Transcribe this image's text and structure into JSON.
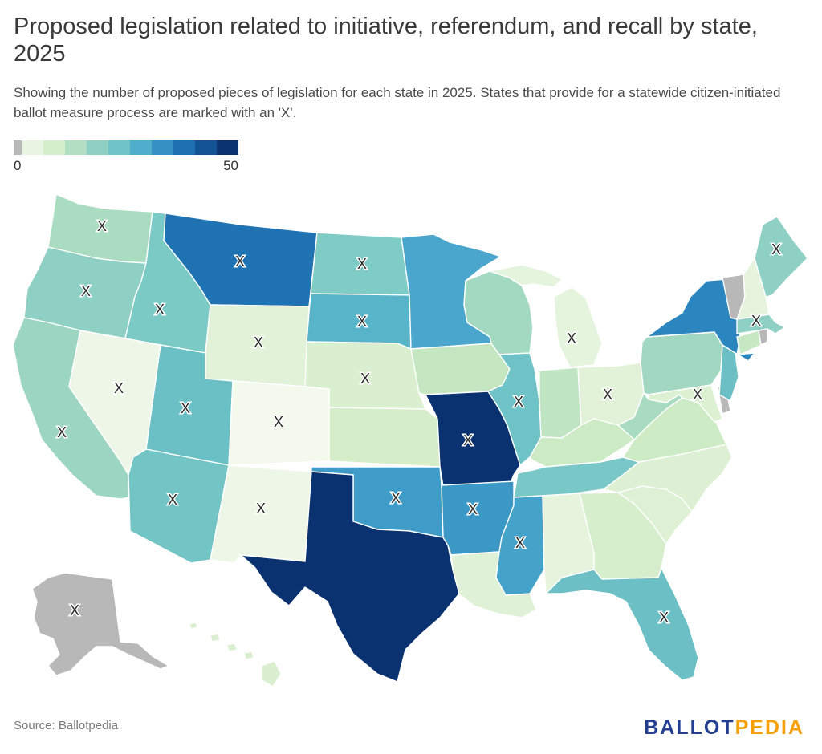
{
  "header": {
    "title": "Proposed legislation related to initiative, referendum, and recall by state, 2025",
    "subtitle": "Showing the number of proposed pieces of legislation for each state in 2025. States that provide for a statewide citizen-initiated ballot measure process are marked with an 'X'."
  },
  "legend": {
    "min_label": "0",
    "max_label": "50",
    "no_data_color": "#b8b8b8",
    "scale_colors": [
      "#e9f5e3",
      "#d4eecb",
      "#b3e0c5",
      "#8fd0c4",
      "#6fc2c6",
      "#4faecc",
      "#3590c3",
      "#1f70b0",
      "#125493",
      "#0b3270"
    ]
  },
  "marker": {
    "symbol": "X"
  },
  "states": [
    {
      "id": "WA",
      "name": "Washington",
      "color": "#a9dcc0",
      "initiative": true
    },
    {
      "id": "OR",
      "name": "Oregon",
      "color": "#8fd0c4",
      "initiative": true
    },
    {
      "id": "CA",
      "name": "California",
      "color": "#9cd5c1",
      "initiative": true
    },
    {
      "id": "NV",
      "name": "Nevada",
      "color": "#eef7e7",
      "initiative": true
    },
    {
      "id": "ID",
      "name": "Idaho",
      "color": "#7ccac6",
      "initiative": true
    },
    {
      "id": "MT",
      "name": "Montana",
      "color": "#1f73b3",
      "initiative": true
    },
    {
      "id": "WY",
      "name": "Wyoming",
      "color": "#e2f2d9",
      "initiative": true
    },
    {
      "id": "UT",
      "name": "Utah",
      "color": "#6bc0c5",
      "initiative": true
    },
    {
      "id": "AZ",
      "name": "Arizona",
      "color": "#72c4c5",
      "initiative": true
    },
    {
      "id": "CO",
      "name": "Colorado",
      "color": "#f3f9ec",
      "initiative": true
    },
    {
      "id": "NM",
      "name": "New Mexico",
      "color": "#eef7e7",
      "initiative": true
    },
    {
      "id": "ND",
      "name": "North Dakota",
      "color": "#7fcbc5",
      "initiative": true
    },
    {
      "id": "SD",
      "name": "South Dakota",
      "color": "#58b4c9",
      "initiative": true
    },
    {
      "id": "NE",
      "name": "Nebraska",
      "color": "#d9efcf",
      "initiative": true
    },
    {
      "id": "KS",
      "name": "Kansas",
      "color": "#d5edc9",
      "initiative": false
    },
    {
      "id": "OK",
      "name": "Oklahoma",
      "color": "#3f9cc8",
      "initiative": true
    },
    {
      "id": "TX",
      "name": "Texas",
      "color": "#0b3270",
      "initiative": false
    },
    {
      "id": "MN",
      "name": "Minnesota",
      "color": "#4aa6cc",
      "initiative": false
    },
    {
      "id": "IA",
      "name": "Iowa",
      "color": "#c4e7c1",
      "initiative": false
    },
    {
      "id": "MO",
      "name": "Missouri",
      "color": "#0b3270",
      "initiative": true
    },
    {
      "id": "AR",
      "name": "Arkansas",
      "color": "#3c99c7",
      "initiative": true
    },
    {
      "id": "LA",
      "name": "Louisiana",
      "color": "#dff1d6",
      "initiative": false
    },
    {
      "id": "WI",
      "name": "Wisconsin",
      "color": "#a4d9c1",
      "initiative": false
    },
    {
      "id": "IL",
      "name": "Illinois",
      "color": "#6fc2c6",
      "initiative": true
    },
    {
      "id": "MI",
      "name": "Michigan",
      "color": "#e5f4dd",
      "initiative": true
    },
    {
      "id": "IN",
      "name": "Indiana",
      "color": "#c0e5c2",
      "initiative": false
    },
    {
      "id": "OH",
      "name": "Ohio",
      "color": "#e2f2d9",
      "initiative": true
    },
    {
      "id": "KY",
      "name": "Kentucky",
      "color": "#cceac4",
      "initiative": false
    },
    {
      "id": "TN",
      "name": "Tennessee",
      "color": "#79c7c6",
      "initiative": false
    },
    {
      "id": "MS",
      "name": "Mississippi",
      "color": "#45a3ca",
      "initiative": true
    },
    {
      "id": "AL",
      "name": "Alabama",
      "color": "#e6f4dd",
      "initiative": false
    },
    {
      "id": "GA",
      "name": "Georgia",
      "color": "#d6eecb",
      "initiative": false
    },
    {
      "id": "FL",
      "name": "Florida",
      "color": "#6cc0c5",
      "initiative": true
    },
    {
      "id": "SC",
      "name": "South Carolina",
      "color": "#def1d4",
      "initiative": false
    },
    {
      "id": "NC",
      "name": "North Carolina",
      "color": "#ddf0d4",
      "initiative": false
    },
    {
      "id": "VA",
      "name": "Virginia",
      "color": "#cdebc4",
      "initiative": false
    },
    {
      "id": "WV",
      "name": "West Virginia",
      "color": "#a9dbc1",
      "initiative": false
    },
    {
      "id": "PA",
      "name": "Pennsylvania",
      "color": "#a2d8c1",
      "initiative": false
    },
    {
      "id": "MD",
      "name": "Maryland",
      "color": "#dcf0d2",
      "initiative": true
    },
    {
      "id": "DE",
      "name": "Delaware",
      "color": "#b8b8b8",
      "initiative": false
    },
    {
      "id": "NJ",
      "name": "New Jersey",
      "color": "#6cc0c5",
      "initiative": false
    },
    {
      "id": "NY",
      "name": "New York",
      "color": "#2b86c0",
      "initiative": false
    },
    {
      "id": "CT",
      "name": "Connecticut",
      "color": "#c6e8c2",
      "initiative": false
    },
    {
      "id": "RI",
      "name": "Rhode Island",
      "color": "#b8b8b8",
      "initiative": false
    },
    {
      "id": "MA",
      "name": "Massachusetts",
      "color": "#8fd0c4",
      "initiative": true
    },
    {
      "id": "VT",
      "name": "Vermont",
      "color": "#b8b8b8",
      "initiative": false
    },
    {
      "id": "NH",
      "name": "New Hampshire",
      "color": "#e6f4dd",
      "initiative": false
    },
    {
      "id": "ME",
      "name": "Maine",
      "color": "#8fd0c4",
      "initiative": true
    },
    {
      "id": "AK",
      "name": "Alaska",
      "color": "#b8b8b8",
      "initiative": true
    },
    {
      "id": "HI",
      "name": "Hawaii",
      "color": "#d9efcf",
      "initiative": false
    }
  ],
  "footer": {
    "source": "Source: Ballotpedia",
    "logo_part1": "BALLOT",
    "logo_part2": "PEDIA"
  }
}
